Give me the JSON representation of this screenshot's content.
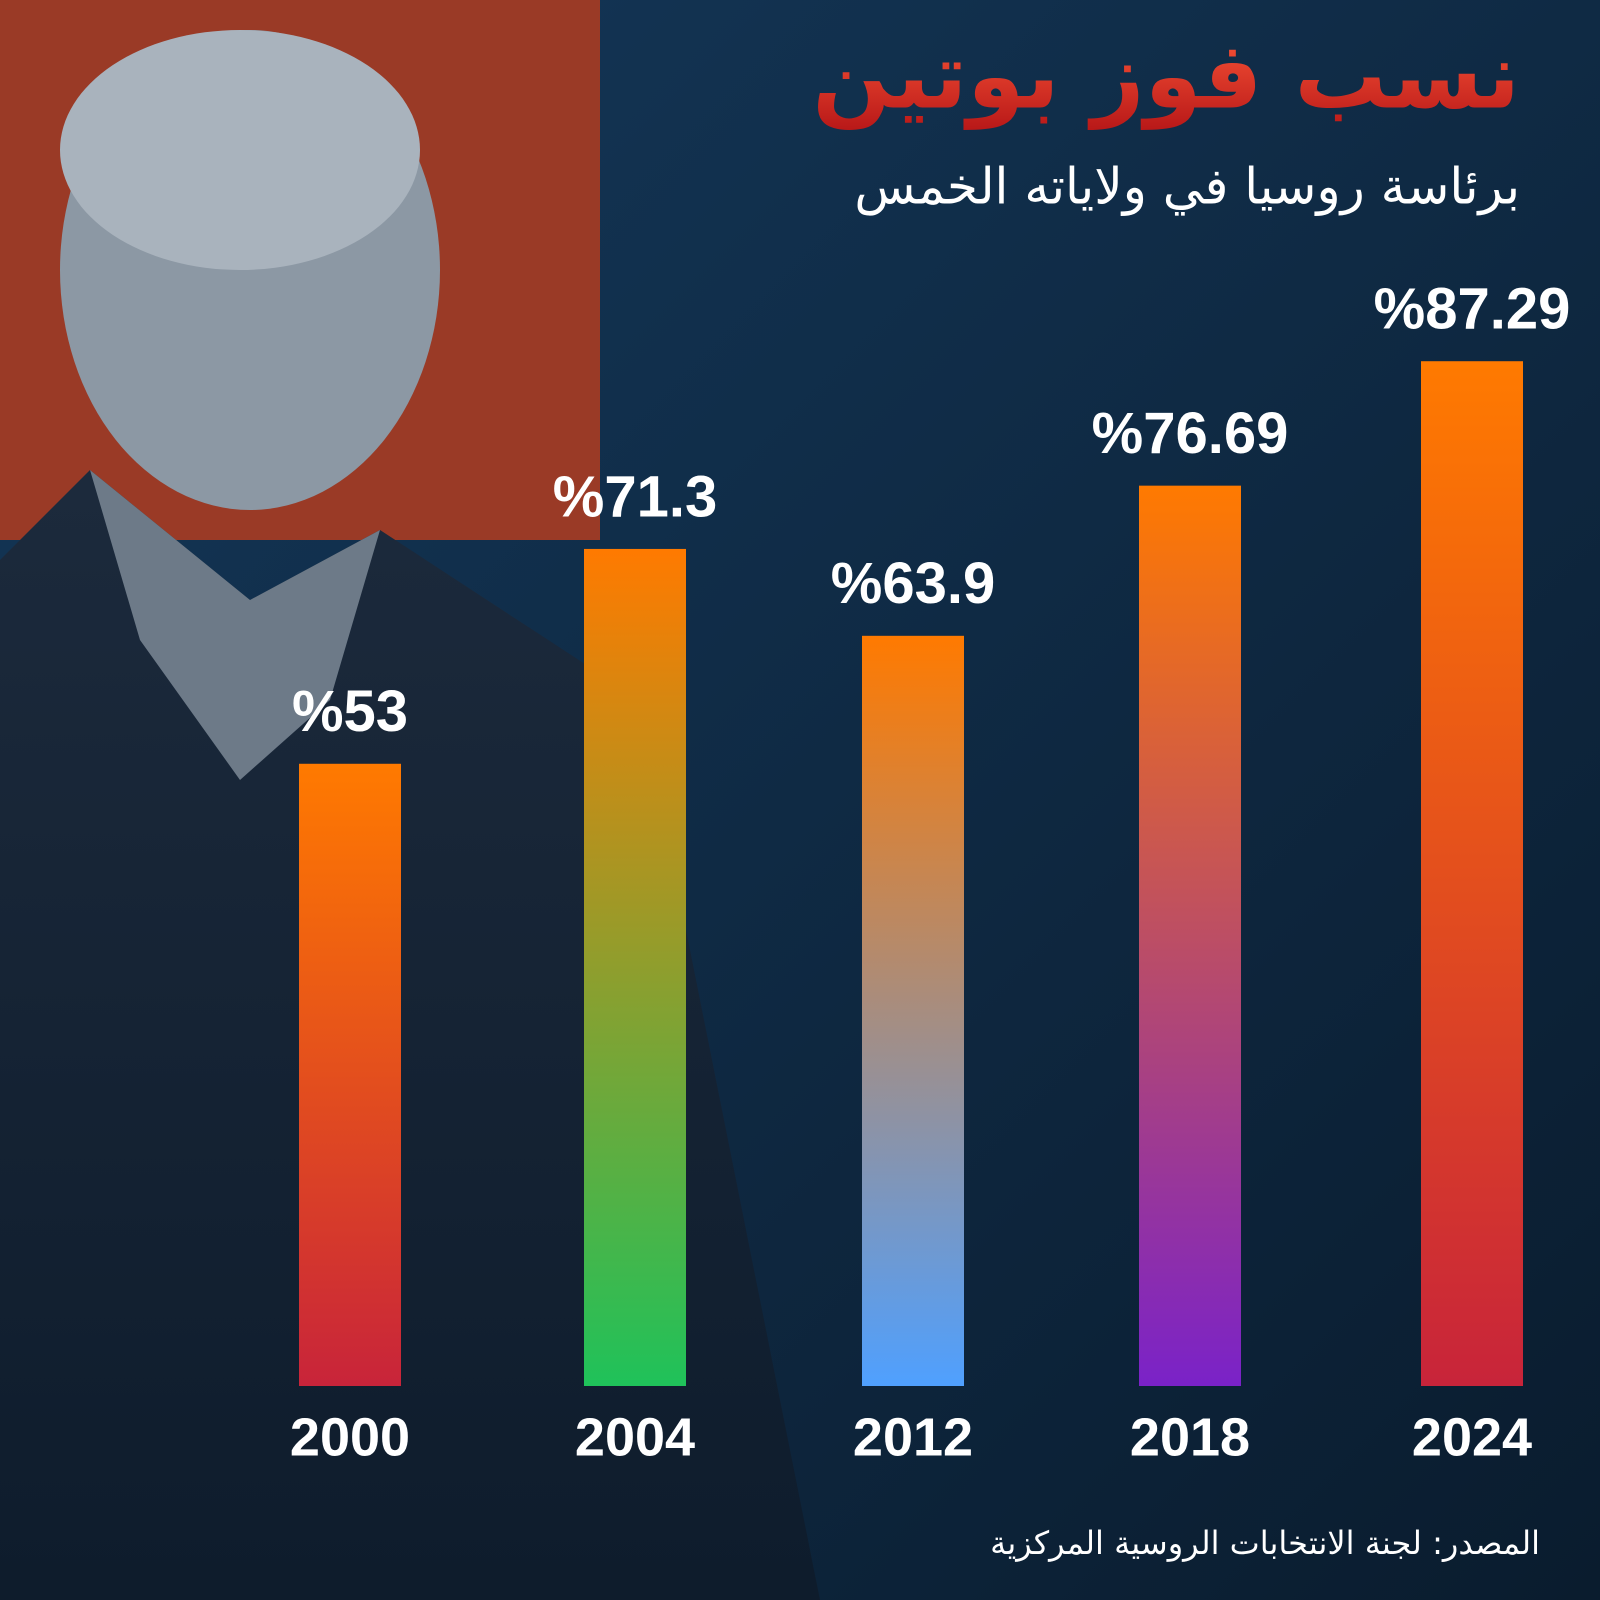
{
  "chart_data": {
    "type": "bar",
    "title": "نسب فوز بوتين",
    "subtitle": "برئاسة روسيا في ولاياته الخمس",
    "source": "المصدر: لجنة الانتخابات الروسية المركزية",
    "categories": [
      "2000",
      "2004",
      "2012",
      "2018",
      "2024"
    ],
    "values": [
      53,
      71.3,
      63.9,
      76.69,
      87.29
    ],
    "value_labels": [
      "%53",
      "%71.3",
      "%63.9",
      "%76.69",
      "%87.29"
    ],
    "colors": [
      [
        "#ff7a00",
        "#c8243a"
      ],
      [
        "#ff7a00",
        "#1fc25a"
      ],
      [
        "#ff7a00",
        "#4fa0ff"
      ],
      [
        "#ff7a00",
        "#7a22c8"
      ],
      [
        "#ff7a00",
        "#c8243a"
      ]
    ]
  }
}
